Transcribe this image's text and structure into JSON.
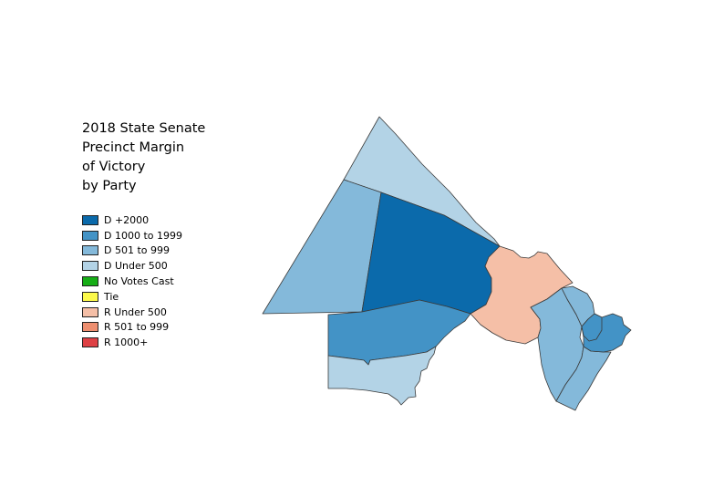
{
  "title": {
    "lines": [
      "2018 State Senate",
      "Precinct Margin",
      "of Victory",
      "by Party"
    ]
  },
  "legend": {
    "items": [
      {
        "label": "D +2000",
        "color": "#0b6aab"
      },
      {
        "label": "D 1000 to 1999",
        "color": "#4393c6"
      },
      {
        "label": "D 501 to 999",
        "color": "#84b9da"
      },
      {
        "label": "D Under 500",
        "color": "#b3d3e6"
      },
      {
        "label": "No Votes Cast",
        "color": "#16ad16"
      },
      {
        "label": "Tie",
        "color": "#fcf94a"
      },
      {
        "label": "R Under 500",
        "color": "#f5bfa7"
      },
      {
        "label": "R 501 to 999",
        "color": "#ee8f70"
      },
      {
        "label": "R 1000+",
        "color": "#de4044"
      }
    ]
  },
  "map": {
    "precincts": [
      {
        "name": "north-wedge",
        "category": "D Under 500",
        "color": "#b3d3e6"
      },
      {
        "name": "northwest-large",
        "category": "D 501 to 999",
        "color": "#84b9da"
      },
      {
        "name": "central-large",
        "category": "D +2000",
        "color": "#0b6aab"
      },
      {
        "name": "south-central",
        "category": "D 1000 to 1999",
        "color": "#4393c6"
      },
      {
        "name": "southwest",
        "category": "D Under 500",
        "color": "#b3d3e6"
      },
      {
        "name": "east-central",
        "category": "R Under 500",
        "color": "#f5bfa7"
      },
      {
        "name": "east-strip-west",
        "category": "D 501 to 999",
        "color": "#84b9da"
      },
      {
        "name": "east-strip-east",
        "category": "D 501 to 999",
        "color": "#84b9da"
      },
      {
        "name": "east-small",
        "category": "D 501 to 999",
        "color": "#84b9da"
      },
      {
        "name": "east-city",
        "category": "D 1000 to 1999",
        "color": "#4393c6"
      },
      {
        "name": "east-city-inner",
        "category": "D 1000 to 1999",
        "color": "#4393c6"
      }
    ]
  }
}
